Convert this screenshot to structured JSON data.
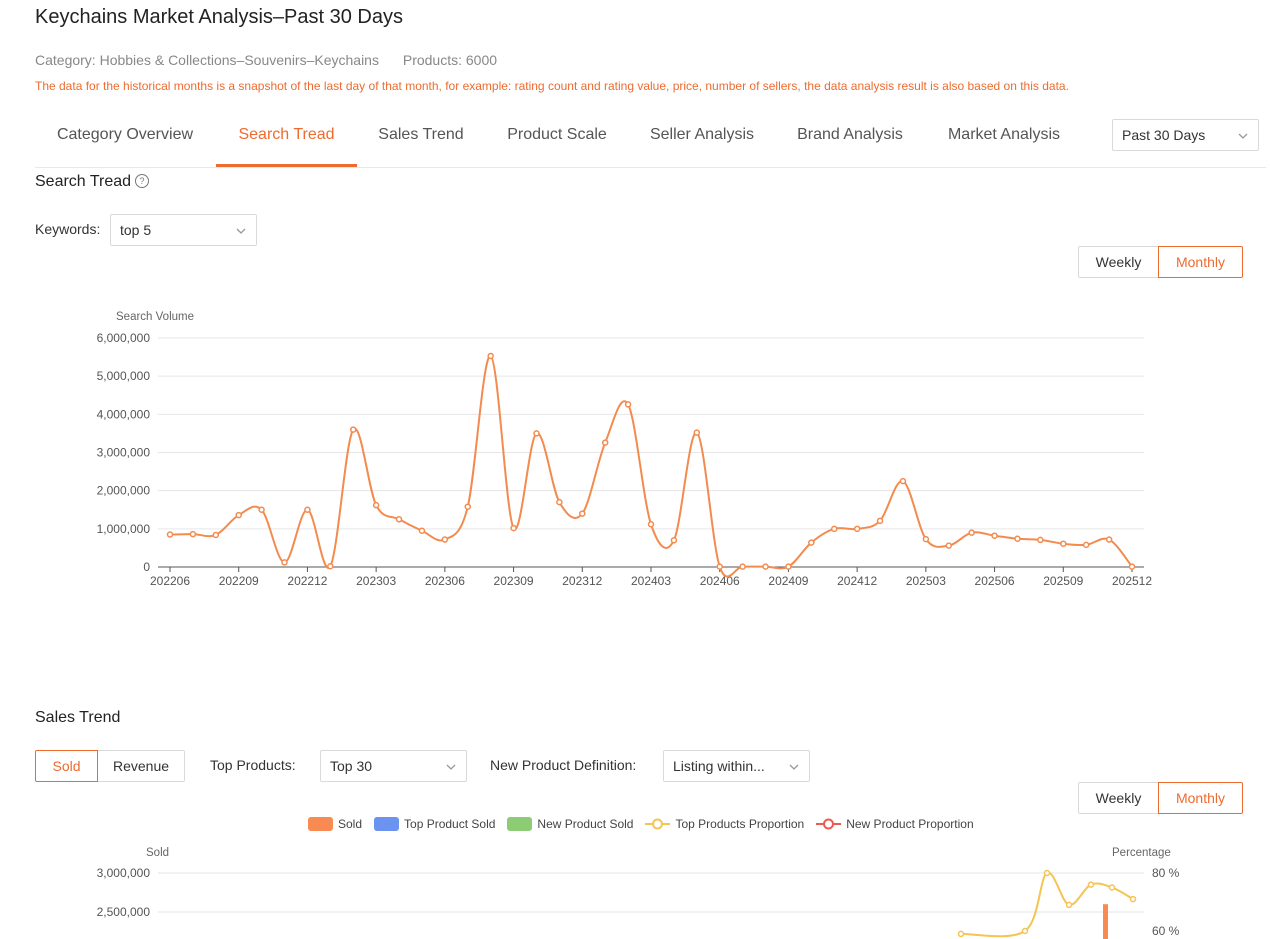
{
  "page_title": "Keychains Market Analysis–Past 30 Days",
  "meta": {
    "category": "Category:  Hobbies & Collections–Souvenirs–Keychains",
    "products": "Products:  6000"
  },
  "notice": "The data for the historical months is a snapshot of the last day of that month, for example: rating count and rating value, price, number of sellers, the data analysis result is also based on this data.",
  "tabs": [
    {
      "label": "Category Overview"
    },
    {
      "label": "Search Tread"
    },
    {
      "label": "Sales Trend"
    },
    {
      "label": "Product Scale"
    },
    {
      "label": "Seller Analysis"
    },
    {
      "label": "Brand Analysis"
    },
    {
      "label": "Market Analysis"
    }
  ],
  "period_select": "Past 30 Days",
  "search_section": {
    "title": "Search Tread",
    "help_icon": "?",
    "keywords_label": "Keywords:",
    "keywords_value": "top 5",
    "toggle": {
      "weekly": "Weekly",
      "monthly": "Monthly",
      "selected": "Monthly"
    }
  },
  "sales_section": {
    "title": "Sales Trend",
    "metric_toggle": {
      "sold": "Sold",
      "revenue": "Revenue",
      "selected": "Sold"
    },
    "top_products_label": "Top Products:",
    "top_products_value": "Top 30",
    "new_def_label": "New Product Definition:",
    "new_def_value": "Listing within...",
    "toggle": {
      "weekly": "Weekly",
      "monthly": "Monthly",
      "selected": "Monthly"
    },
    "legend": [
      {
        "name": "Sold",
        "type": "bar",
        "color": "#f88a52"
      },
      {
        "name": "Top Product Sold",
        "type": "bar",
        "color": "#6c93ef"
      },
      {
        "name": "New Product Sold",
        "type": "bar",
        "color": "#8ccc74"
      },
      {
        "name": "Top Products Proportion",
        "type": "line",
        "color": "#f5c452"
      },
      {
        "name": "New Product Proportion",
        "type": "line",
        "color": "#ee5a52"
      }
    ]
  },
  "chart_data": [
    {
      "type": "line",
      "ylabel": "Search Volume",
      "ylim": [
        0,
        6000000
      ],
      "yticks": [
        "0",
        "1,000,000",
        "2,000,000",
        "3,000,000",
        "4,000,000",
        "5,000,000",
        "6,000,000"
      ],
      "xtick_labels": [
        "202206",
        "202209",
        "202212",
        "202303",
        "202306",
        "202309",
        "202312",
        "202403",
        "202406",
        "202409",
        "202412",
        "202503",
        "202506",
        "202509",
        "202512"
      ],
      "x": [
        "202206",
        "202207",
        "202208",
        "202209",
        "202210",
        "202211",
        "202212",
        "202301",
        "202302",
        "202303",
        "202304",
        "202305",
        "202306",
        "202307",
        "202308",
        "202309",
        "202310",
        "202311",
        "202312",
        "202401",
        "202402",
        "202403",
        "202404",
        "202405",
        "202406",
        "202407",
        "202408",
        "202409",
        "202410",
        "202411",
        "202412",
        "202501",
        "202502",
        "202503",
        "202504",
        "202505",
        "202506",
        "202507",
        "202508",
        "202509",
        "202510",
        "202511",
        "202512"
      ],
      "series": [
        {
          "color": "#f38b4f",
          "values": [
            850000,
            860000,
            840000,
            1360000,
            1500000,
            120000,
            1500000,
            20000,
            3600000,
            1620000,
            1250000,
            950000,
            720000,
            1580000,
            5530000,
            1020000,
            3500000,
            1700000,
            1400000,
            3260000,
            4260000,
            1120000,
            700000,
            3520000,
            10000,
            10000,
            10000,
            10000,
            640000,
            1000000,
            1000000,
            1210000,
            2250000,
            730000,
            560000,
            900000,
            820000,
            740000,
            710000,
            610000,
            580000,
            720000,
            10000
          ]
        }
      ],
      "grid": true
    },
    {
      "type": "bar",
      "ylabel": "Sold",
      "y2label": "Percentage",
      "yticks_visible": [
        "3,000,000",
        "2,500,000"
      ],
      "y2ticks_visible": [
        "80 %",
        "60 %"
      ],
      "series": [
        {
          "name": "Sold",
          "type": "bar",
          "values_visible_partial": [
            2600000
          ]
        },
        {
          "name": "Top Products Proportion",
          "type": "line",
          "values_visible_partial": [
            59,
            60,
            80,
            69,
            76,
            75,
            71
          ]
        }
      ],
      "note": "Chart partially cropped at bottom of screenshot"
    }
  ]
}
